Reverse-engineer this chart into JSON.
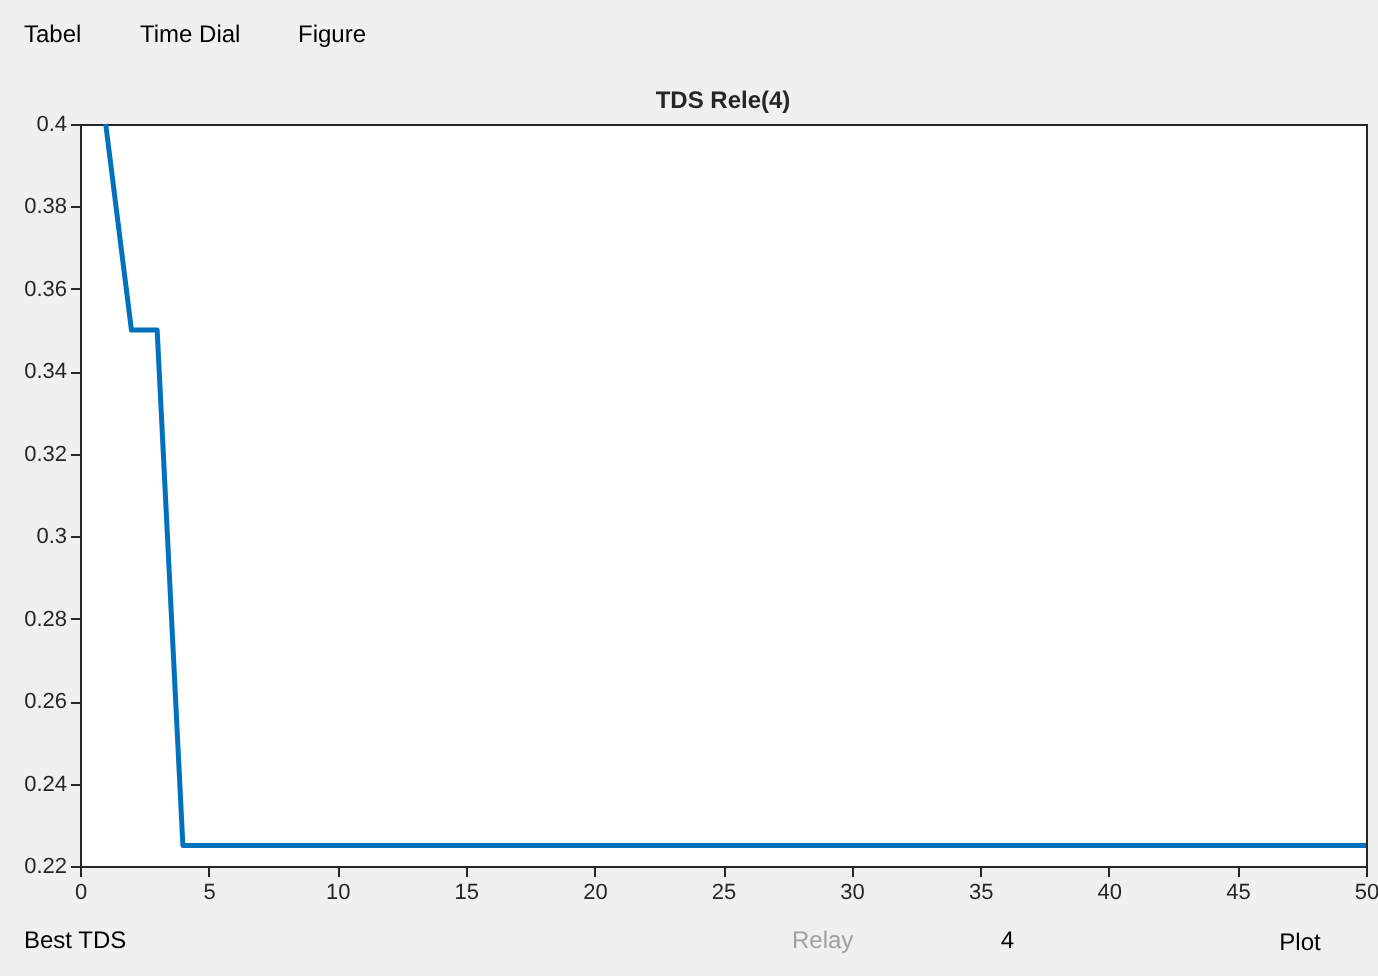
{
  "chart_data": {
    "type": "line",
    "title": "TDS Rele(4)",
    "x": [
      1,
      2,
      3,
      4,
      50
    ],
    "series": [
      {
        "color": "#0072bd",
        "values": [
          0.4,
          0.35,
          0.35,
          0.225,
          0.225
        ]
      }
    ],
    "xlim": [
      0,
      50
    ],
    "xticks": [
      0,
      5,
      10,
      15,
      20,
      25,
      30,
      35,
      40,
      45,
      50
    ],
    "ylim": [
      0.22,
      0.4
    ],
    "yticks": [
      0.22,
      0.24,
      0.26,
      0.28,
      0.3,
      0.32,
      0.34,
      0.36,
      0.38,
      0.4
    ],
    "grid": false,
    "marker": "none",
    "line_style": "solid",
    "annotations": [
      "Tabel",
      "Time Dial",
      "Figure",
      "Best TDS",
      "Relay",
      "4",
      "Plot"
    ]
  }
}
